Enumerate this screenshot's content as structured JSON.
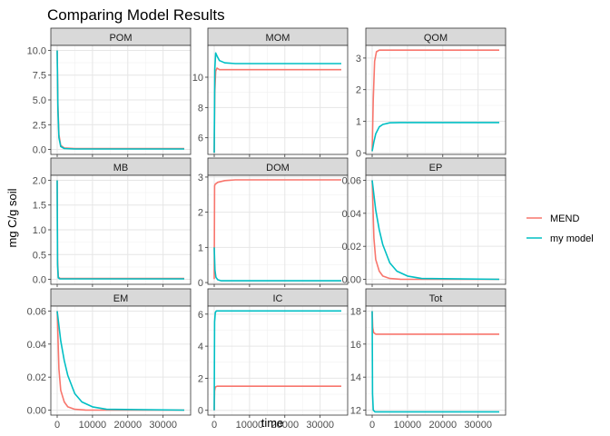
{
  "title": "Comparing Model Results",
  "xlabel": "time",
  "ylabel": "mg C/g soil",
  "legend": {
    "position": "right",
    "items": [
      {
        "name": "MEND",
        "color": "#F8766D"
      },
      {
        "name": "my model",
        "color": "#00BFC4"
      }
    ]
  },
  "chart_data": [
    {
      "type": "line",
      "panel": "POM",
      "xlim": [
        -1800,
        37800
      ],
      "ylim": [
        -0.5,
        10.5
      ],
      "xticks": [
        0,
        10000,
        20000,
        30000
      ],
      "xtick_labels": [
        "0",
        "10000",
        "20000",
        "30000"
      ],
      "yticks": [
        0,
        2.5,
        5,
        7.5,
        10
      ],
      "ytick_labels": [
        "0.0",
        "2.5",
        "5.0",
        "7.5",
        "10.0"
      ],
      "series": [
        {
          "name": "MEND",
          "x": [
            0,
            200,
            500,
            1000,
            2000,
            5000,
            36000
          ],
          "y": [
            10,
            4.5,
            1.5,
            0.4,
            0.15,
            0.1,
            0.1
          ]
        },
        {
          "name": "my model",
          "x": [
            0,
            200,
            500,
            1000,
            2000,
            5000,
            36000
          ],
          "y": [
            10,
            4.0,
            1.2,
            0.3,
            0.1,
            0.05,
            0.05
          ]
        }
      ]
    },
    {
      "type": "line",
      "panel": "MOM",
      "xlim": [
        -1800,
        37800
      ],
      "ylim": [
        4.9,
        12.1
      ],
      "xticks": [
        0,
        10000,
        20000,
        30000
      ],
      "xtick_labels": [
        "0",
        "10000",
        "20000",
        "30000"
      ],
      "yticks": [
        6,
        8,
        10
      ],
      "ytick_labels": [
        "6",
        "8",
        "10"
      ],
      "series": [
        {
          "name": "MEND",
          "x": [
            0,
            150,
            400,
            800,
            1500,
            3000,
            36000
          ],
          "y": [
            5.0,
            9.0,
            10.4,
            10.6,
            10.5,
            10.5,
            10.5
          ]
        },
        {
          "name": "my model",
          "x": [
            0,
            150,
            400,
            800,
            1500,
            3000,
            6000,
            36000
          ],
          "y": [
            5.0,
            10.5,
            11.6,
            11.4,
            11.1,
            10.95,
            10.9,
            10.9
          ]
        }
      ]
    },
    {
      "type": "line",
      "panel": "QOM",
      "xlim": [
        -1800,
        37800
      ],
      "ylim": [
        -0.05,
        3.4
      ],
      "xticks": [
        0,
        10000,
        20000,
        30000
      ],
      "xtick_labels": [
        "0",
        "10000",
        "20000",
        "30000"
      ],
      "yticks": [
        0,
        1,
        2,
        3
      ],
      "ytick_labels": [
        "0",
        "1",
        "2",
        "3"
      ],
      "series": [
        {
          "name": "MEND",
          "x": [
            0,
            300,
            700,
            1200,
            2000,
            36000
          ],
          "y": [
            0.05,
            1.7,
            2.9,
            3.2,
            3.25,
            3.25
          ]
        },
        {
          "name": "my model",
          "x": [
            0,
            500,
            1000,
            2000,
            3000,
            5000,
            8000,
            36000
          ],
          "y": [
            0.05,
            0.35,
            0.6,
            0.82,
            0.9,
            0.95,
            0.96,
            0.96
          ]
        }
      ]
    },
    {
      "type": "line",
      "panel": "MB",
      "xlim": [
        -1800,
        37800
      ],
      "ylim": [
        -0.1,
        2.1
      ],
      "xticks": [
        0,
        10000,
        20000,
        30000
      ],
      "xtick_labels": [
        "0",
        "10000",
        "20000",
        "30000"
      ],
      "yticks": [
        0,
        0.5,
        1,
        1.5,
        2
      ],
      "ytick_labels": [
        "0.0",
        "0.5",
        "1.0",
        "1.5",
        "2.0"
      ],
      "series": [
        {
          "name": "MEND",
          "x": [
            0,
            100,
            300,
            800,
            36000
          ],
          "y": [
            2.0,
            0.4,
            0.05,
            0.02,
            0.02
          ]
        },
        {
          "name": "my model",
          "x": [
            0,
            100,
            300,
            800,
            36000
          ],
          "y": [
            2.0,
            0.3,
            0.03,
            0.01,
            0.01
          ]
        }
      ]
    },
    {
      "type": "line",
      "panel": "DOM",
      "xlim": [
        -1800,
        37800
      ],
      "ylim": [
        -0.05,
        3.05
      ],
      "xticks": [
        0,
        10000,
        20000,
        30000
      ],
      "xtick_labels": [
        "0",
        "10000",
        "20000",
        "30000"
      ],
      "yticks": [
        0,
        1,
        2,
        3
      ],
      "ytick_labels": [
        "0",
        "1",
        "2",
        "3"
      ],
      "series": [
        {
          "name": "MEND",
          "x": [
            0,
            100,
            300,
            1000,
            3000,
            6000,
            36000
          ],
          "y": [
            0.1,
            2.75,
            2.8,
            2.85,
            2.9,
            2.92,
            2.92
          ]
        },
        {
          "name": "my model",
          "x": [
            0,
            200,
            500,
            1000,
            2000,
            36000
          ],
          "y": [
            1.0,
            0.35,
            0.15,
            0.08,
            0.05,
            0.05
          ]
        }
      ]
    },
    {
      "type": "line",
      "panel": "EP",
      "xlim": [
        -1800,
        37800
      ],
      "ylim": [
        -0.003,
        0.063
      ],
      "xticks": [
        0,
        10000,
        20000,
        30000
      ],
      "xtick_labels": [
        "0",
        "10000",
        "20000",
        "30000"
      ],
      "yticks": [
        0,
        0.02,
        0.04,
        0.06
      ],
      "ytick_labels": [
        "0.00",
        "0.02",
        "0.04",
        "0.06"
      ],
      "series": [
        {
          "name": "MEND",
          "x": [
            0,
            500,
            1000,
            2000,
            3000,
            5000,
            8000,
            12000,
            36000
          ],
          "y": [
            0.06,
            0.025,
            0.012,
            0.005,
            0.002,
            0.0005,
            0.0001,
            0,
            0
          ]
        },
        {
          "name": "my model",
          "x": [
            0,
            1000,
            2000,
            3000,
            5000,
            7000,
            10000,
            14000,
            36000
          ],
          "y": [
            0.06,
            0.042,
            0.03,
            0.021,
            0.01,
            0.005,
            0.002,
            0.0005,
            0
          ]
        }
      ]
    },
    {
      "type": "line",
      "panel": "EM",
      "xlim": [
        -1800,
        37800
      ],
      "ylim": [
        -0.003,
        0.063
      ],
      "xticks": [
        0,
        10000,
        20000,
        30000
      ],
      "xtick_labels": [
        "0",
        "10000",
        "20000",
        "30000"
      ],
      "yticks": [
        0,
        0.02,
        0.04,
        0.06
      ],
      "ytick_labels": [
        "0.00",
        "0.02",
        "0.04",
        "0.06"
      ],
      "series": [
        {
          "name": "MEND",
          "x": [
            0,
            500,
            1000,
            2000,
            3000,
            5000,
            8000,
            12000,
            36000
          ],
          "y": [
            0.06,
            0.025,
            0.012,
            0.005,
            0.002,
            0.0005,
            0.0001,
            0,
            0
          ]
        },
        {
          "name": "my model",
          "x": [
            0,
            1000,
            2000,
            3000,
            5000,
            7000,
            10000,
            14000,
            36000
          ],
          "y": [
            0.06,
            0.042,
            0.03,
            0.021,
            0.01,
            0.005,
            0.002,
            0.0005,
            0
          ]
        }
      ]
    },
    {
      "type": "line",
      "panel": "IC",
      "xlim": [
        -1800,
        37800
      ],
      "ylim": [
        -0.3,
        6.5
      ],
      "xticks": [
        0,
        10000,
        20000,
        30000
      ],
      "xtick_labels": [
        "0",
        "10000",
        "20000",
        "30000"
      ],
      "yticks": [
        0,
        2,
        4,
        6
      ],
      "ytick_labels": [
        "0",
        "2",
        "4",
        "6"
      ],
      "series": [
        {
          "name": "MEND",
          "x": [
            0,
            100,
            300,
            800,
            1500,
            36000
          ],
          "y": [
            0,
            1.2,
            1.45,
            1.5,
            1.5,
            1.5
          ]
        },
        {
          "name": "my model",
          "x": [
            0,
            100,
            300,
            600,
            1200,
            36000
          ],
          "y": [
            0,
            5.5,
            6.1,
            6.2,
            6.2,
            6.2
          ]
        }
      ]
    },
    {
      "type": "line",
      "panel": "Tot",
      "xlim": [
        -1800,
        37800
      ],
      "ylim": [
        11.7,
        18.3
      ],
      "xticks": [
        0,
        10000,
        20000,
        30000
      ],
      "xtick_labels": [
        "0",
        "10000",
        "20000",
        "30000"
      ],
      "yticks": [
        12,
        14,
        16,
        18
      ],
      "ytick_labels": [
        "12",
        "14",
        "16",
        "18"
      ],
      "series": [
        {
          "name": "MEND",
          "x": [
            0,
            150,
            400,
            1000,
            36000
          ],
          "y": [
            18.0,
            17.0,
            16.7,
            16.6,
            16.6
          ]
        },
        {
          "name": "my model",
          "x": [
            0,
            100,
            300,
            800,
            36000
          ],
          "y": [
            18.0,
            13.0,
            12.0,
            11.9,
            11.9
          ]
        }
      ]
    }
  ]
}
